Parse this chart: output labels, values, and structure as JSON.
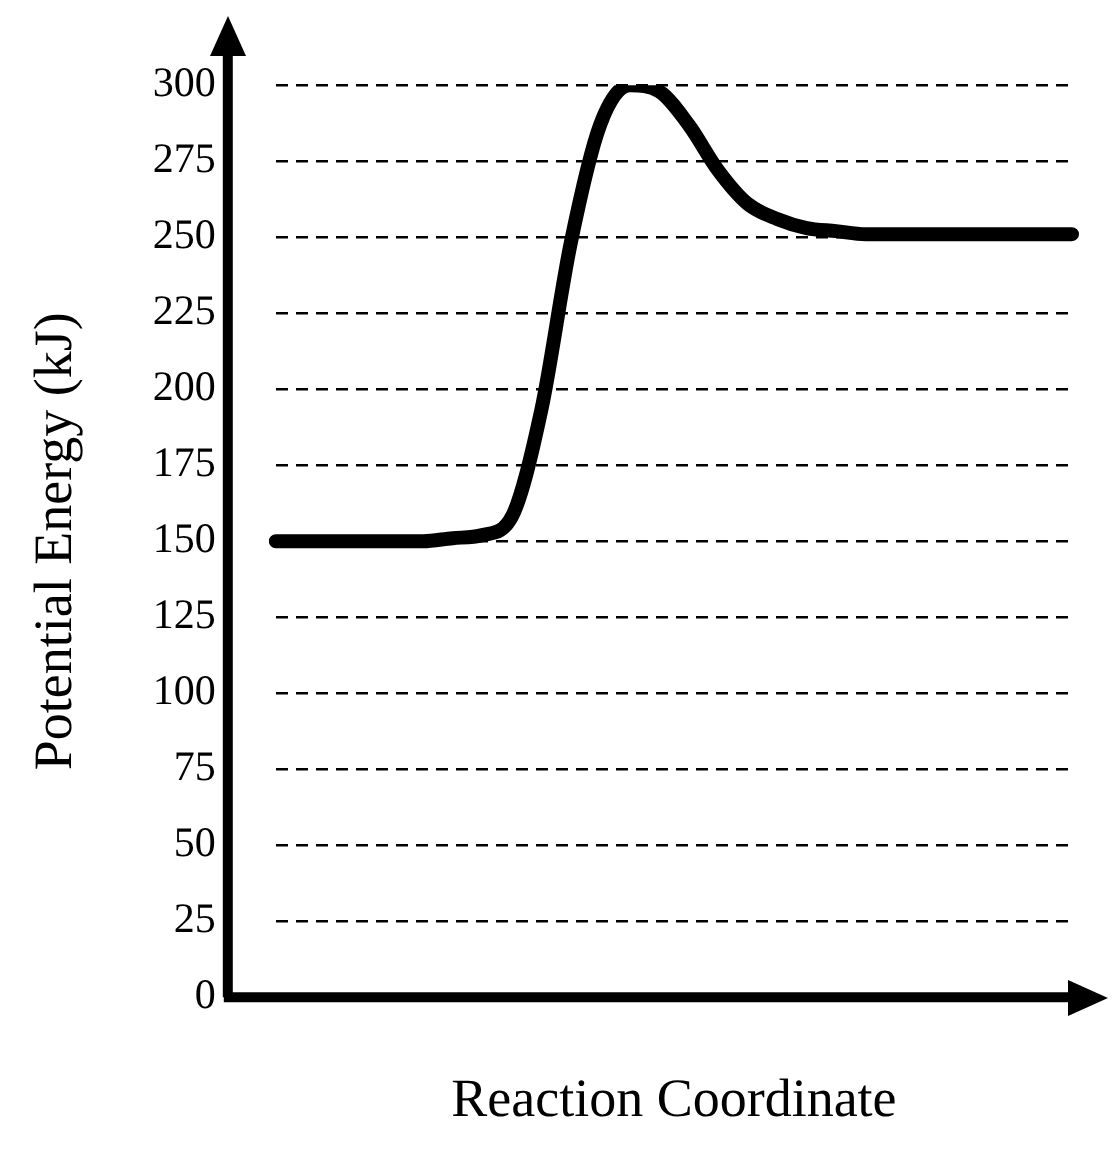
{
  "chart_data": {
    "type": "line",
    "xlabel": "Reaction Coordinate",
    "ylabel": "Potential Energy (kJ)",
    "categories": [
      null,
      null,
      null,
      null,
      null,
      null,
      null,
      null,
      null,
      null,
      null,
      null,
      null,
      null,
      null,
      null,
      null,
      null,
      null,
      null,
      null,
      null,
      null,
      null,
      null,
      null,
      null,
      null
    ],
    "series": [
      {
        "color": "#000000",
        "values": [
          150,
          150,
          150,
          150,
          150,
          150,
          151,
          152,
          158,
          193,
          248,
          287,
          300,
          298,
          287,
          272,
          261,
          256,
          253,
          252,
          251,
          251,
          251,
          251,
          251,
          251,
          251,
          251
        ]
      }
    ],
    "ylim": [
      0,
      300
    ],
    "yticks": [
      0,
      25,
      50,
      75,
      100,
      125,
      150,
      175,
      200,
      225,
      250,
      275,
      300
    ],
    "grid": "y",
    "legend": false,
    "marker": "none",
    "line_style": "solid"
  }
}
